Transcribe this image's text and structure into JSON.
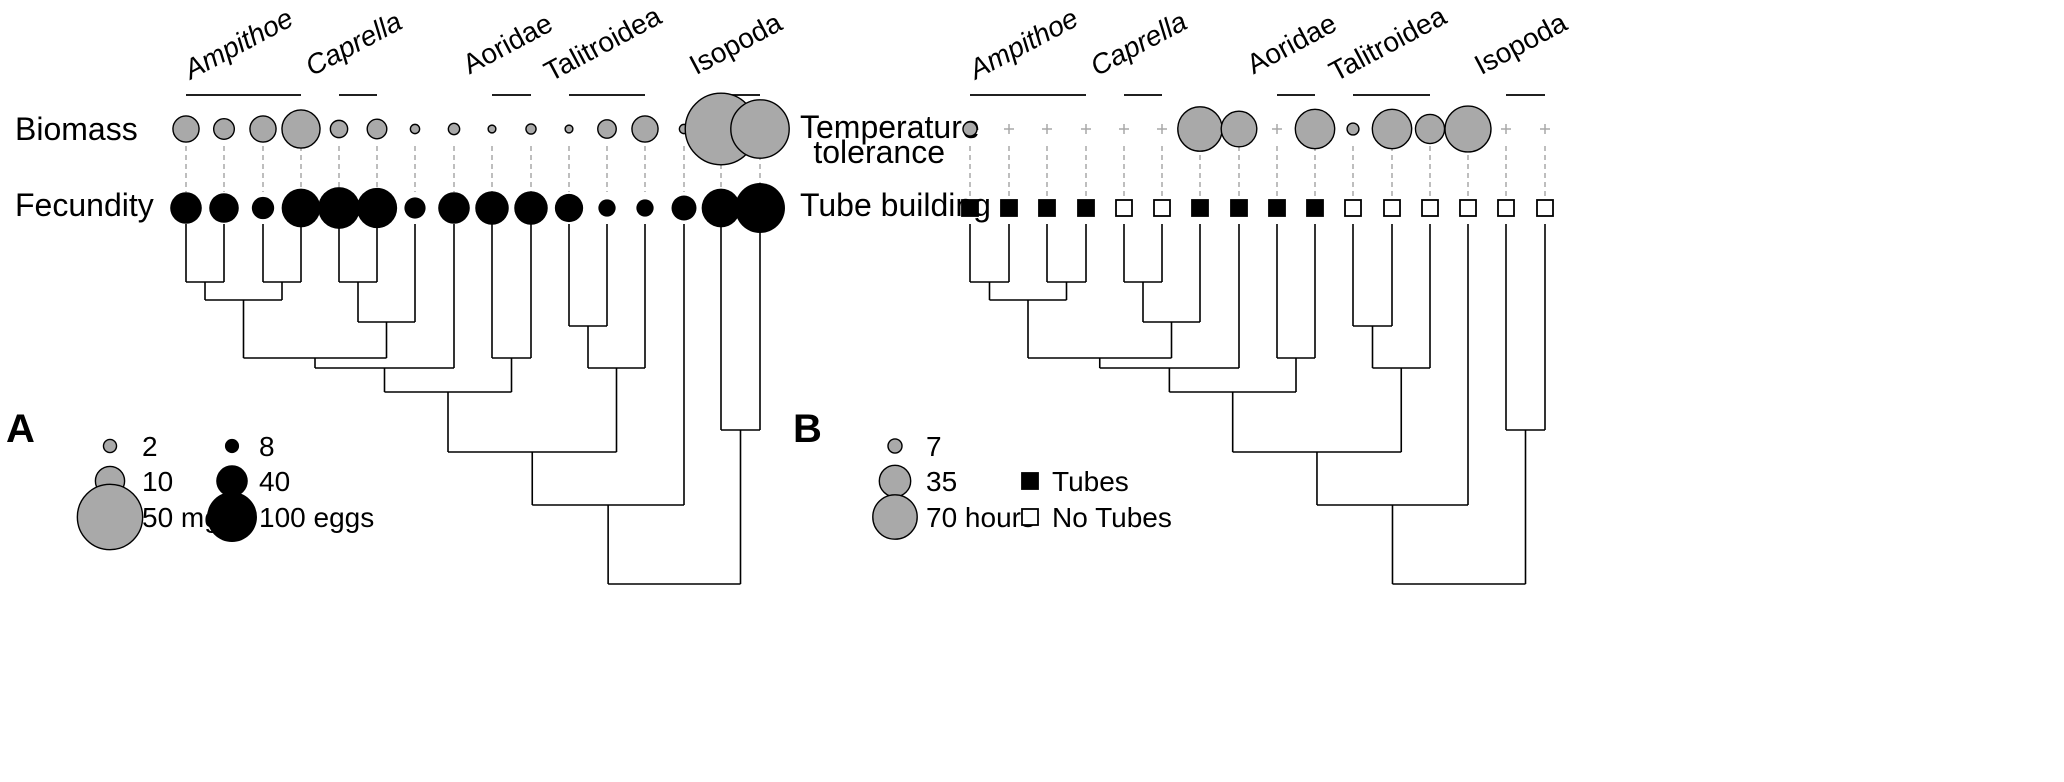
{
  "panel_a": {
    "letter": "A",
    "rows": {
      "top": "Biomass",
      "bottom": "Fecundity"
    },
    "clades": [
      {
        "name": "Ampithoe",
        "italic": true
      },
      {
        "name": "Caprella",
        "italic": true
      },
      {
        "name": "Aoridae",
        "italic": false
      },
      {
        "name": "Talitroidea",
        "italic": false
      },
      {
        "name": "Isopoda",
        "italic": false
      }
    ],
    "biomass_mg": [
      8,
      5,
      8,
      17,
      3.5,
      4.5,
      1,
      1.5,
      0.7,
      1.2,
      0.7,
      4,
      8,
      1,
      60,
      40
    ],
    "fecundity_eggs": [
      40,
      35,
      20,
      60,
      70,
      65,
      18,
      40,
      45,
      45,
      32,
      12,
      12,
      25,
      60,
      100
    ],
    "legend": {
      "biomass": [
        {
          "value": 2,
          "label": "2"
        },
        {
          "value": 10,
          "label": "10"
        },
        {
          "value": 50,
          "label": "50 mg"
        }
      ],
      "fecundity": [
        {
          "value": 8,
          "label": "8"
        },
        {
          "value": 40,
          "label": "40"
        },
        {
          "value": 100,
          "label": "100 eggs"
        }
      ]
    }
  },
  "panel_b": {
    "letter": "B",
    "rows": {
      "top_line1": "Temperature",
      "top_line2": "tolerance",
      "bottom": "Tube building"
    },
    "clades": [
      {
        "name": "Ampithoe",
        "italic": true
      },
      {
        "name": "Caprella",
        "italic": true
      },
      {
        "name": "Aoridae",
        "italic": false
      },
      {
        "name": "Talitroidea",
        "italic": false
      },
      {
        "name": "Isopoda",
        "italic": false
      }
    ],
    "temperature_tolerance_hours": [
      7,
      null,
      null,
      null,
      null,
      null,
      70,
      45,
      null,
      55,
      5,
      55,
      30,
      75,
      null,
      null
    ],
    "tube_building": [
      true,
      true,
      true,
      true,
      false,
      false,
      true,
      true,
      true,
      true,
      false,
      false,
      false,
      false,
      false,
      false
    ],
    "legend": {
      "temperature": [
        {
          "value": 7,
          "label": "7"
        },
        {
          "value": 35,
          "label": "35"
        },
        {
          "value": 70,
          "label": "70 hours"
        }
      ],
      "tubes": [
        {
          "filled": true,
          "label": "Tubes"
        },
        {
          "filled": false,
          "label": "No Tubes"
        }
      ]
    }
  },
  "colors": {
    "biomass_fill": "#a9a9a9",
    "fecundity_fill": "#000000",
    "connector": "#a8a8a8",
    "tree": "#000000"
  }
}
